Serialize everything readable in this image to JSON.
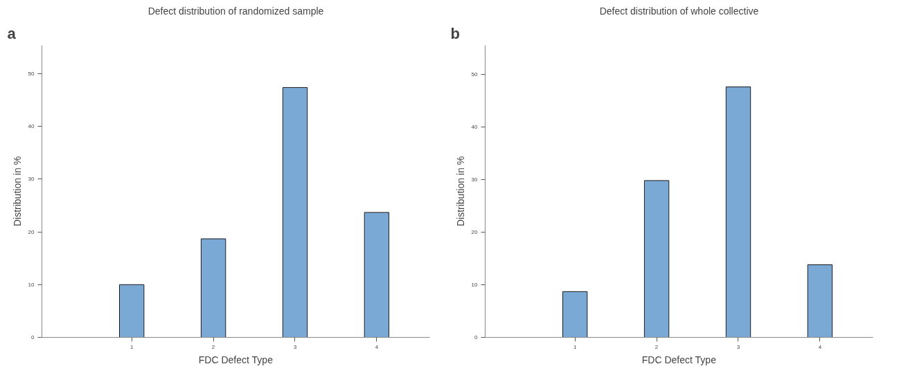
{
  "chart_data": [
    {
      "type": "bar",
      "title": "Defect distribution of randomized sample",
      "xlabel": "FDC Defect Type",
      "ylabel": "Distribution in %",
      "annotations": [
        "a"
      ],
      "categories": [
        "1",
        "2",
        "3",
        "4"
      ],
      "values": [
        10.0,
        18.7,
        47.4,
        23.7
      ],
      "color": "#7ba9d6",
      "ylim": [
        0,
        55.4
      ],
      "yticks": [
        0,
        10,
        20,
        30,
        40,
        50
      ],
      "grid": false
    },
    {
      "type": "bar",
      "title": "Defect distribution of whole collective",
      "xlabel": "FDC Defect Type",
      "ylabel": "Distribution in %",
      "annotations": [
        "b"
      ],
      "categories": [
        "1",
        "2",
        "3",
        "4"
      ],
      "values": [
        8.7,
        29.8,
        47.6,
        13.8
      ],
      "color": "#7ba9d6",
      "ylim": [
        0,
        55.5
      ],
      "yticks": [
        0,
        10,
        20,
        30,
        40,
        50
      ],
      "grid": false
    }
  ]
}
